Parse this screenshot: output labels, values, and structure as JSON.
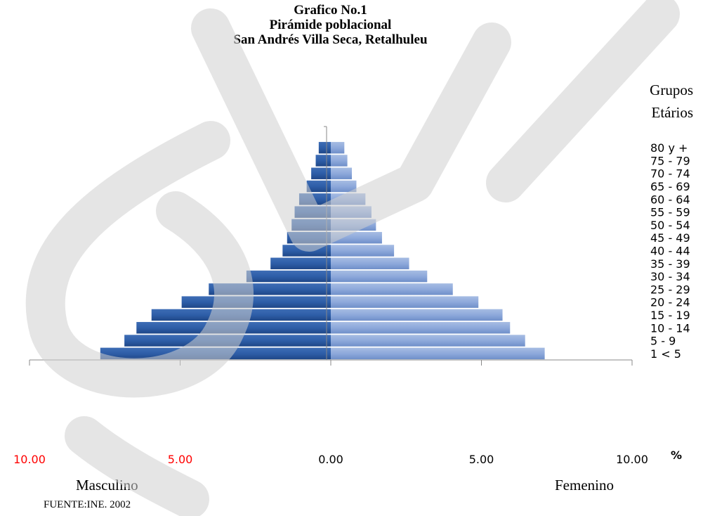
{
  "title_lines": [
    "Grafico No.1",
    "Pirámide poblacional",
    "San Andrés Villa Seca, Retalhuleu"
  ],
  "age_axis_title": [
    "Grupos",
    "Etários"
  ],
  "percent_symbol": "%",
  "left_label": "Masculino",
  "right_label": "Femenino",
  "source": "FUENTE:INE. 2002",
  "colors": {
    "male": "#2E5EA8",
    "male_dark": "#1F4788",
    "female": "#8EA9DB",
    "female_dark": "#6F8FC9",
    "red_tick": "#FF0000",
    "axis": "#888888",
    "watermark": "#d9d9d9"
  },
  "chart_data": {
    "type": "bar",
    "orientation": "horizontal-pyramid",
    "categories": [
      "1 < 5",
      "5 - 9",
      "10 - 14",
      "15 - 19",
      "20 - 24",
      "25 - 29",
      "30 - 34",
      "35 - 39",
      "40 - 44",
      "45 - 49",
      "50 - 54",
      "55 - 59",
      "60 - 64",
      "65 - 69",
      "70 - 74",
      "75 - 79",
      "80 y +"
    ],
    "series": [
      {
        "name": "Masculino",
        "values": [
          7.65,
          6.85,
          6.45,
          5.95,
          4.95,
          4.05,
          2.8,
          2.0,
          1.6,
          1.45,
          1.3,
          1.2,
          1.05,
          0.8,
          0.65,
          0.5,
          0.4
        ]
      },
      {
        "name": "Femenino",
        "values": [
          7.1,
          6.45,
          5.95,
          5.7,
          4.9,
          4.05,
          3.2,
          2.6,
          2.1,
          1.7,
          1.5,
          1.35,
          1.15,
          0.85,
          0.7,
          0.55,
          0.45
        ]
      }
    ],
    "xlim": [
      -10,
      10
    ],
    "xticks": [
      {
        "label": "10.00",
        "value": -10,
        "color": "#FF0000"
      },
      {
        "label": "5.00",
        "value": -5,
        "color": "#FF0000"
      },
      {
        "label": "0.00",
        "value": 0,
        "color": "#000000"
      },
      {
        "label": "5.00",
        "value": 5,
        "color": "#000000"
      },
      {
        "label": "10.00",
        "value": 10,
        "color": "#000000"
      }
    ]
  }
}
